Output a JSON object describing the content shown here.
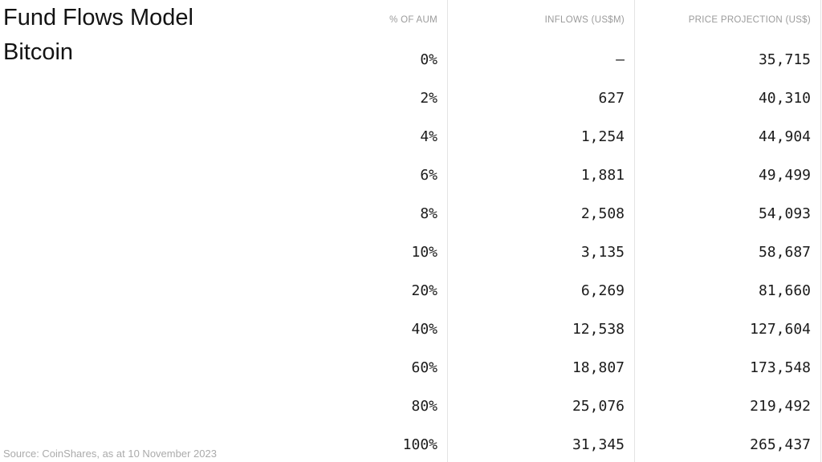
{
  "title": {
    "line1": "Fund Flows Model",
    "line2": "Bitcoin"
  },
  "source": "Source: CoinShares, as at 10 November 2023",
  "colors": {
    "title_text": "#131313",
    "body_text": "#1b1b1b",
    "header_text": "#9b9b9b",
    "source_text": "#ababab",
    "divider": "#e4e4e4",
    "background": "#ffffff"
  },
  "chart_data": {
    "type": "table",
    "title": "Fund Flows Model Bitcoin",
    "columns": [
      "% OF AUM",
      "INFLOWS (US$M)",
      "PRICE PROJECTION (US$)"
    ],
    "rows": [
      [
        "0%",
        "–",
        "35,715"
      ],
      [
        "2%",
        "627",
        "40,310"
      ],
      [
        "4%",
        "1,254",
        "44,904"
      ],
      [
        "6%",
        "1,881",
        "49,499"
      ],
      [
        "8%",
        "2,508",
        "54,093"
      ],
      [
        "10%",
        "3,135",
        "58,687"
      ],
      [
        "20%",
        "6,269",
        "81,660"
      ],
      [
        "40%",
        "12,538",
        "127,604"
      ],
      [
        "60%",
        "18,807",
        "173,548"
      ],
      [
        "80%",
        "25,076",
        "219,492"
      ],
      [
        "100%",
        "31,345",
        "265,437"
      ]
    ]
  }
}
